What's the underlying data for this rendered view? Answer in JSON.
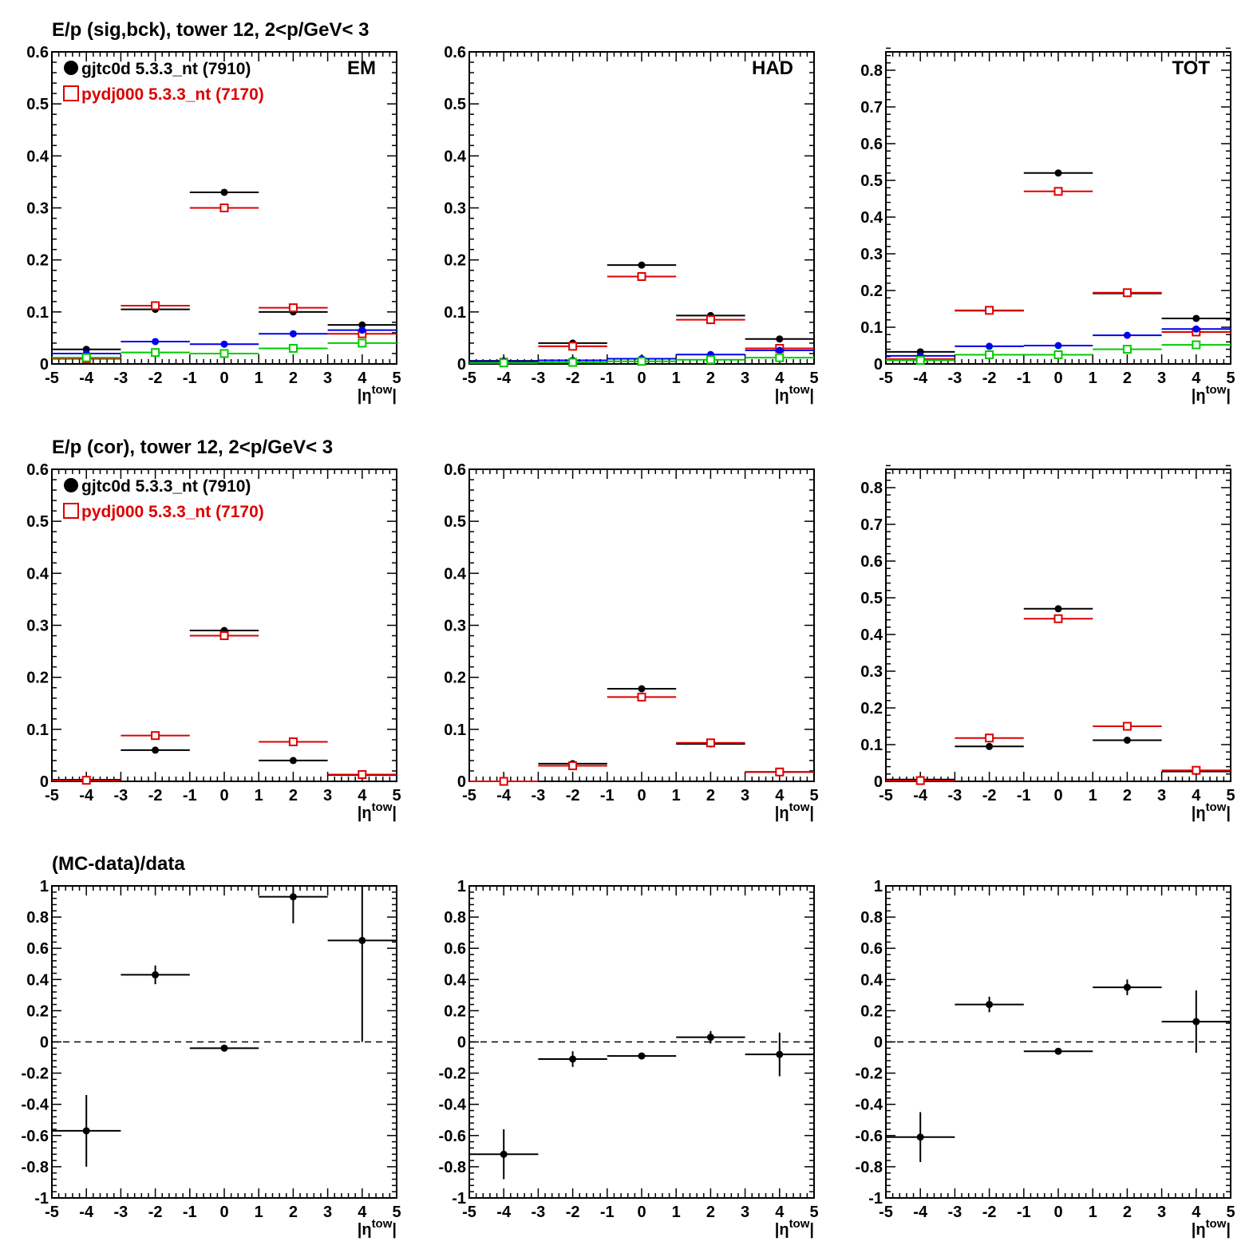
{
  "row_titles": [
    "E/p (sig,bck), tower 12,  2<p/GeV< 3",
    "E/p (cor), tower 12,  2<p/GeV< 3",
    "(MC-data)/data"
  ],
  "legend": [
    {
      "label": "gjtc0d 5.3.3_nt (7910)",
      "color": "#000000",
      "marker": "filled-circle"
    },
    {
      "label": "pydj000 5.3.3_nt (7170)",
      "color": "#dd0000",
      "marker": "open-square"
    }
  ],
  "x_axis": {
    "label_main": "|η",
    "label_sup": "tow",
    "label_end": "|",
    "ticks": [
      "-5",
      "-4",
      "-3",
      "-2",
      "-1",
      "0",
      "1",
      "2",
      "3",
      "4",
      "5"
    ],
    "xlim": [
      -5,
      5
    ]
  },
  "panel_labels": [
    "EM",
    "HAD",
    "TOT"
  ],
  "colors": {
    "data": "#000000",
    "mc": "#dd0000",
    "bck_data": "#0000ee",
    "bck_mc": "#00cc00"
  },
  "chart_data": [
    {
      "type": "scatter",
      "title": "E/p (sig,bck), tower 12,  2<p/GeV< 3",
      "panel_label": "EM",
      "ylim": [
        0,
        0.6
      ],
      "yticks": [
        "0",
        "0.1",
        "0.2",
        "0.3",
        "0.4",
        "0.5",
        "0.6"
      ],
      "x": [
        -4,
        -2,
        0,
        2,
        4
      ],
      "xerr": 1,
      "series": [
        {
          "values": [
            0.028,
            0.105,
            0.33,
            0.1,
            0.075
          ],
          "color": "#000000",
          "marker": "filled-circle"
        },
        {
          "values": [
            0.01,
            0.112,
            0.3,
            0.108,
            0.058
          ],
          "color": "#dd0000",
          "marker": "open-square"
        },
        {
          "values": [
            0.02,
            0.043,
            0.038,
            0.058,
            0.065
          ],
          "color": "#0000ee",
          "marker": "filled-circle"
        },
        {
          "values": [
            0.012,
            0.022,
            0.02,
            0.03,
            0.04
          ],
          "color": "#00cc00",
          "marker": "open-square"
        }
      ]
    },
    {
      "type": "scatter",
      "panel_label": "HAD",
      "ylim": [
        0,
        0.6
      ],
      "yticks": [
        "0",
        "0.1",
        "0.2",
        "0.3",
        "0.4",
        "0.5",
        "0.6"
      ],
      "x": [
        -4,
        -2,
        0,
        2,
        4
      ],
      "xerr": 1,
      "series": [
        {
          "values": [
            0.006,
            0.04,
            0.19,
            0.093,
            0.048
          ],
          "color": "#000000",
          "marker": "filled-circle"
        },
        {
          "values": [
            0.003,
            0.034,
            0.168,
            0.085,
            0.03
          ],
          "color": "#dd0000",
          "marker": "open-square"
        },
        {
          "values": [
            0.005,
            0.007,
            0.01,
            0.018,
            0.026
          ],
          "color": "#0000ee",
          "marker": "filled-circle"
        },
        {
          "values": [
            0.002,
            0.003,
            0.005,
            0.008,
            0.012
          ],
          "color": "#00cc00",
          "marker": "open-square"
        }
      ]
    },
    {
      "type": "scatter",
      "panel_label": "TOT",
      "ylim": [
        0,
        0.85
      ],
      "yticks": [
        "0",
        "0.1",
        "0.2",
        "0.3",
        "0.4",
        "0.5",
        "0.6",
        "0.7",
        "0.8"
      ],
      "x": [
        -4,
        -2,
        0,
        2,
        4
      ],
      "xerr": 1,
      "series": [
        {
          "values": [
            0.033,
            0.145,
            0.52,
            0.192,
            0.124
          ],
          "color": "#000000",
          "marker": "filled-circle"
        },
        {
          "values": [
            0.013,
            0.146,
            0.47,
            0.194,
            0.087
          ],
          "color": "#dd0000",
          "marker": "open-square"
        },
        {
          "values": [
            0.022,
            0.048,
            0.05,
            0.078,
            0.095
          ],
          "color": "#0000ee",
          "marker": "filled-circle"
        },
        {
          "values": [
            0.01,
            0.025,
            0.025,
            0.04,
            0.052
          ],
          "color": "#00cc00",
          "marker": "open-square"
        }
      ]
    },
    {
      "type": "scatter",
      "title": "E/p (cor), tower 12,  2<p/GeV< 3",
      "ylim": [
        0,
        0.6
      ],
      "yticks": [
        "0",
        "0.1",
        "0.2",
        "0.3",
        "0.4",
        "0.5",
        "0.6"
      ],
      "x": [
        -4,
        -2,
        0,
        2,
        4
      ],
      "xerr": 1,
      "series": [
        {
          "values": [
            0.003,
            0.06,
            0.29,
            0.04,
            0.012
          ],
          "color": "#000000",
          "marker": "filled-circle"
        },
        {
          "values": [
            0.002,
            0.088,
            0.28,
            0.076,
            0.013
          ],
          "color": "#dd0000",
          "marker": "open-square"
        }
      ]
    },
    {
      "type": "scatter",
      "ylim": [
        0,
        0.6
      ],
      "yticks": [
        "0",
        "0.1",
        "0.2",
        "0.3",
        "0.4",
        "0.5",
        "0.6"
      ],
      "x": [
        -4,
        -2,
        0,
        2,
        4
      ],
      "xerr": 1,
      "series": [
        {
          "values": [
            0.0,
            0.034,
            0.178,
            0.072,
            0.018
          ],
          "color": "#000000",
          "marker": "filled-circle"
        },
        {
          "values": [
            0.0,
            0.03,
            0.162,
            0.074,
            0.018
          ],
          "color": "#dd0000",
          "marker": "open-square"
        }
      ]
    },
    {
      "type": "scatter",
      "ylim": [
        0,
        0.85
      ],
      "yticks": [
        "0",
        "0.1",
        "0.2",
        "0.3",
        "0.4",
        "0.5",
        "0.6",
        "0.7",
        "0.8"
      ],
      "x": [
        -4,
        -2,
        0,
        2,
        4
      ],
      "xerr": 1,
      "series": [
        {
          "values": [
            0.005,
            0.095,
            0.47,
            0.112,
            0.027
          ],
          "color": "#000000",
          "marker": "filled-circle"
        },
        {
          "values": [
            0.002,
            0.118,
            0.443,
            0.15,
            0.03
          ],
          "color": "#dd0000",
          "marker": "open-square"
        }
      ]
    },
    {
      "type": "scatter",
      "title": "(MC-data)/data",
      "ylim": [
        -1,
        1
      ],
      "yticks": [
        "-1",
        "-0.8",
        "-0.6",
        "-0.4",
        "-0.2",
        "0",
        "0.2",
        "0.4",
        "0.6",
        "0.8",
        "1"
      ],
      "x": [
        -4,
        -2,
        0,
        2,
        4
      ],
      "xerr": 1,
      "reference_line": 0,
      "series": [
        {
          "values": [
            -0.57,
            0.43,
            -0.04,
            0.93,
            0.65
          ],
          "yerr": [
            0.23,
            0.06,
            0.02,
            0.17,
            0.65
          ],
          "color": "#000000",
          "marker": "filled-circle"
        }
      ]
    },
    {
      "type": "scatter",
      "ylim": [
        -1,
        1
      ],
      "yticks": [
        "-1",
        "-0.8",
        "-0.6",
        "-0.4",
        "-0.2",
        "0",
        "0.2",
        "0.4",
        "0.6",
        "0.8",
        "1"
      ],
      "x": [
        -4,
        -2,
        0,
        2,
        4
      ],
      "xerr": 1,
      "reference_line": 0,
      "series": [
        {
          "values": [
            -0.72,
            -0.11,
            -0.09,
            0.03,
            -0.08
          ],
          "yerr": [
            0.16,
            0.05,
            0.02,
            0.04,
            0.14
          ],
          "color": "#000000",
          "marker": "filled-circle"
        }
      ]
    },
    {
      "type": "scatter",
      "ylim": [
        -1,
        1
      ],
      "yticks": [
        "-1",
        "-0.8",
        "-0.6",
        "-0.4",
        "-0.2",
        "0",
        "0.2",
        "0.4",
        "0.6",
        "0.8",
        "1"
      ],
      "x": [
        -4,
        -2,
        0,
        2,
        4
      ],
      "xerr": 1,
      "reference_line": 0,
      "series": [
        {
          "values": [
            -0.61,
            0.24,
            -0.06,
            0.35,
            0.13
          ],
          "yerr": [
            0.16,
            0.05,
            0.02,
            0.05,
            0.2
          ],
          "color": "#000000",
          "marker": "filled-circle"
        }
      ]
    }
  ]
}
